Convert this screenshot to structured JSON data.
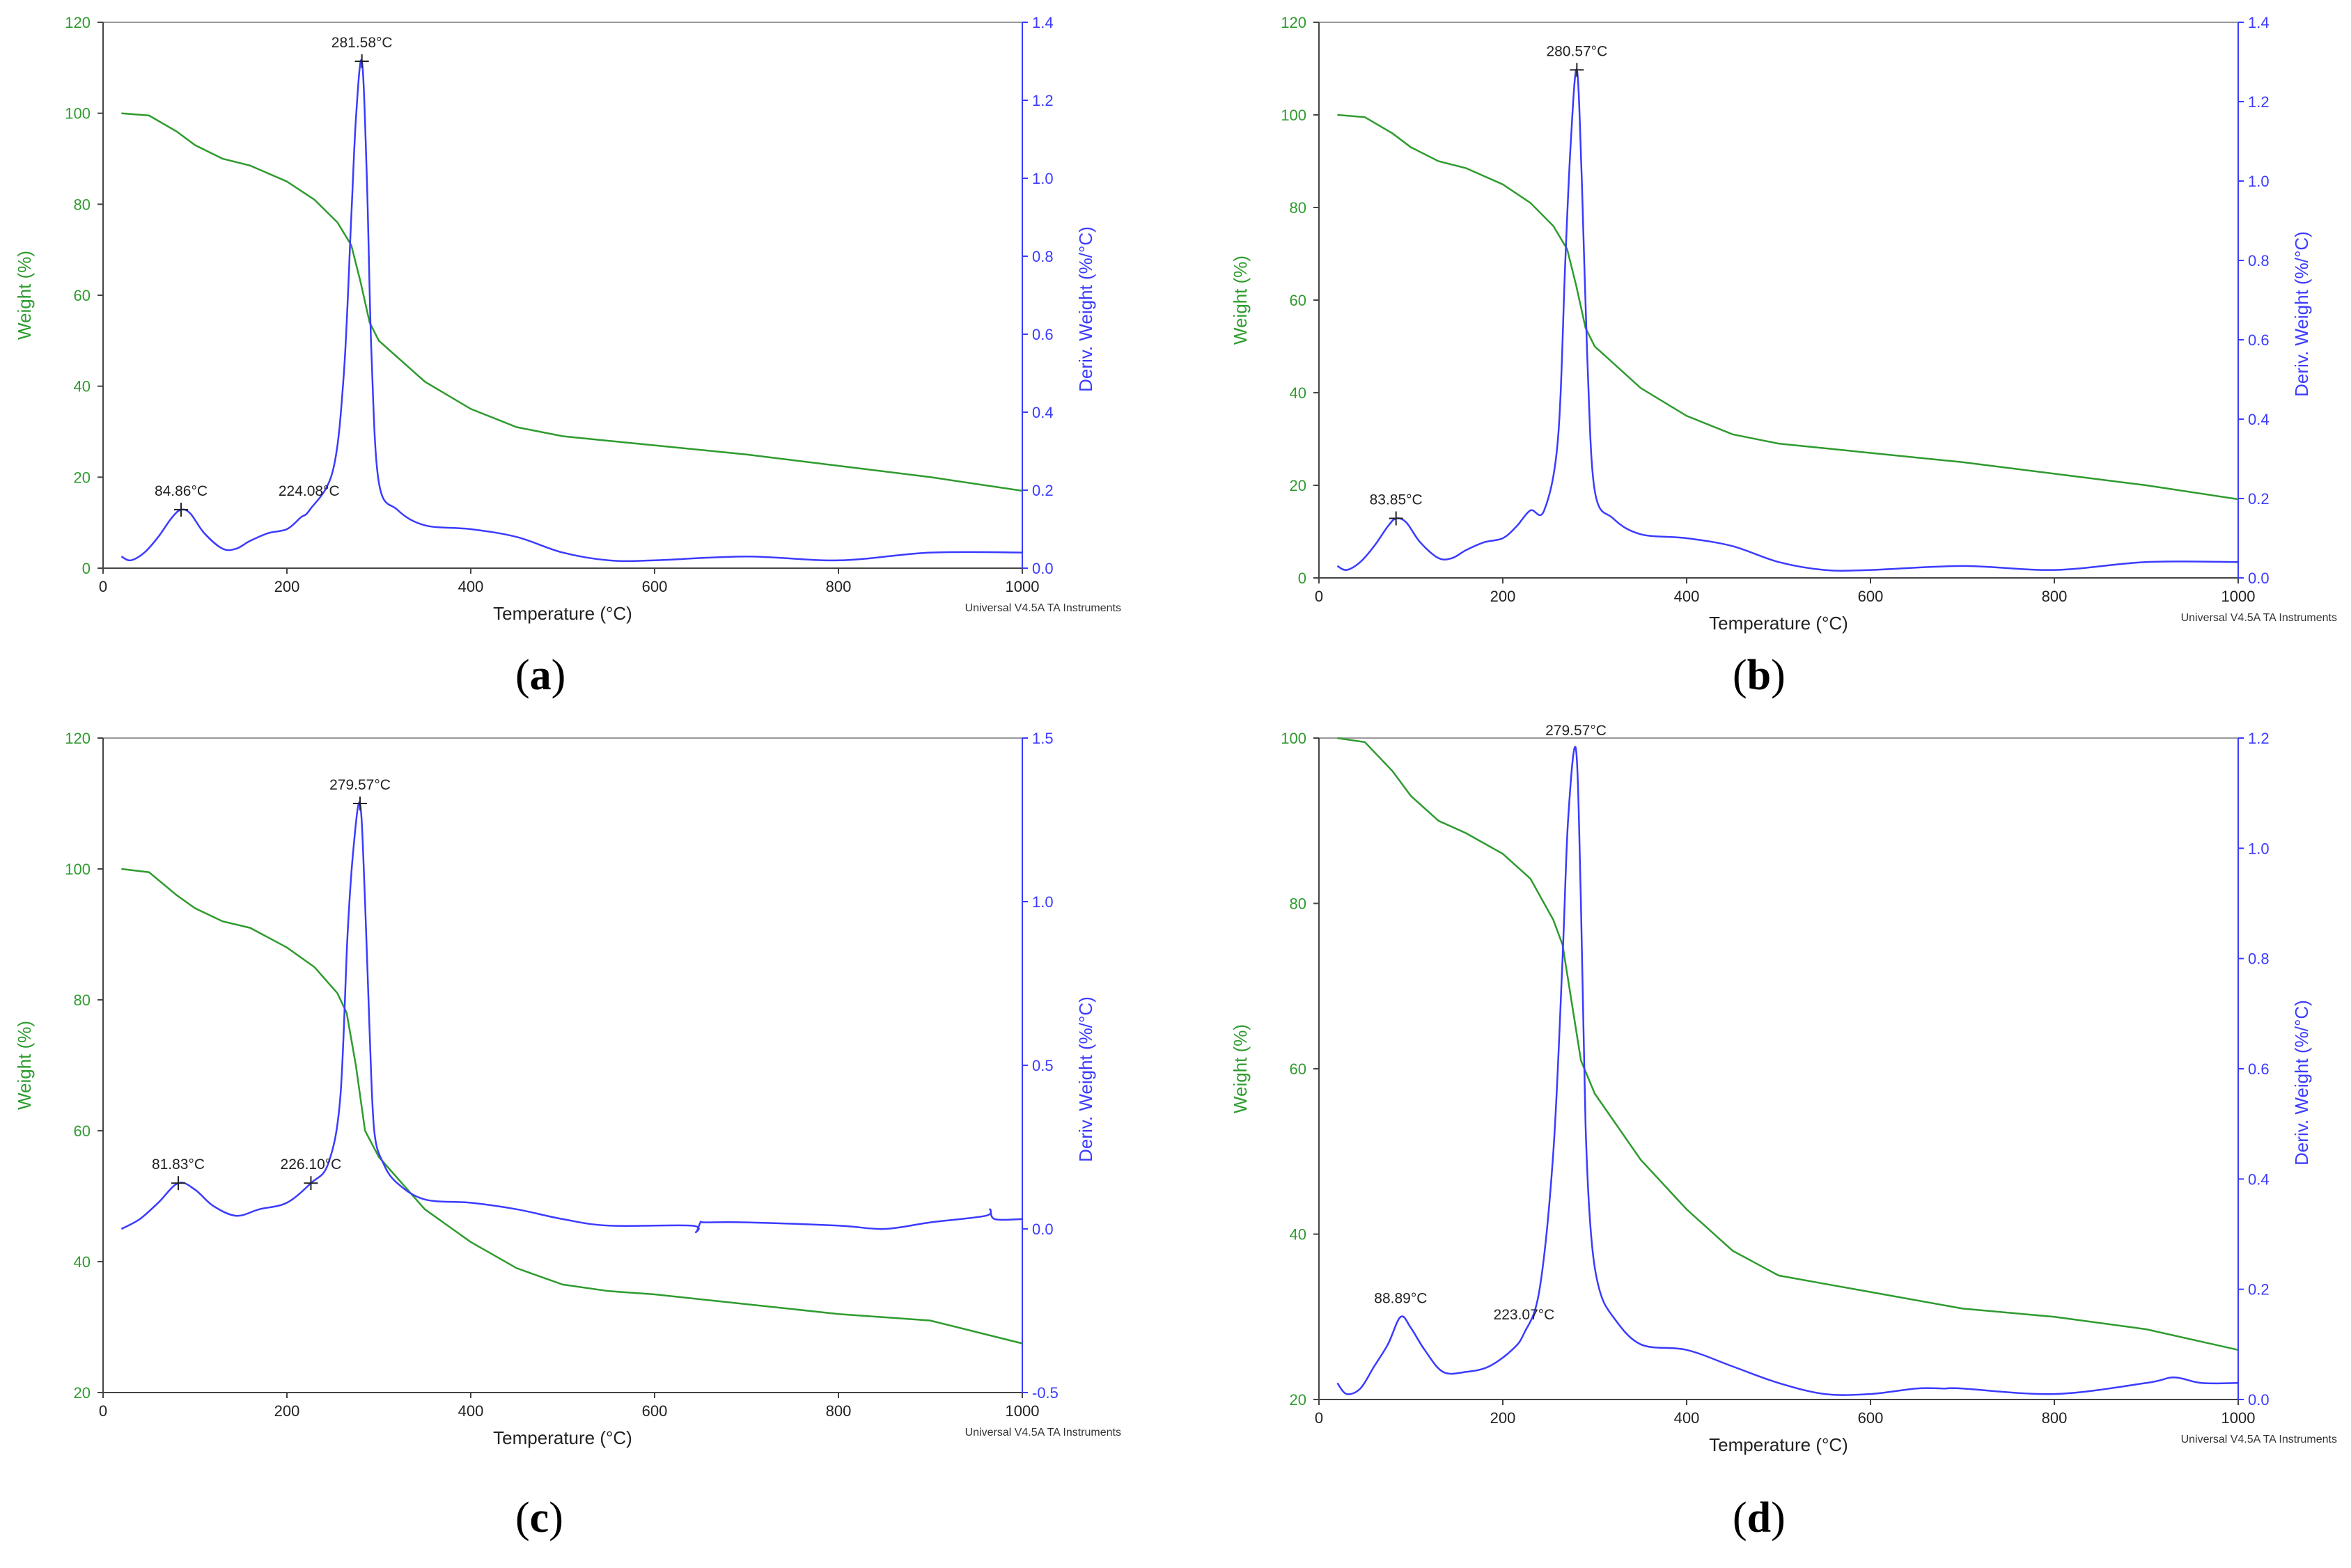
{
  "colors": {
    "weight": "#2e9b2e",
    "deriv": "#3b3bff",
    "axis": "#444444",
    "frame": "#9a9a9a"
  },
  "chart_data": [
    {
      "id": "a",
      "type": "line",
      "caption_letter": "a",
      "xlabel": "Temperature (°C)",
      "ylabel": "Weight (%)",
      "y2label": "Deriv. Weight (%/°C)",
      "watermark": "Universal V4.5A TA Instruments",
      "xlim": [
        0,
        1000
      ],
      "xticks": [
        "0",
        "200",
        "400",
        "600",
        "800",
        "1000"
      ],
      "ylim": [
        0,
        120
      ],
      "yticks": [
        "0",
        "20",
        "40",
        "60",
        "80",
        "100",
        "120"
      ],
      "y2lim": [
        0,
        1.4
      ],
      "y2ticks": [
        "0.0",
        "0.2",
        "0.4",
        "0.6",
        "0.8",
        "1.0",
        "1.2",
        "1.4"
      ],
      "weight_x": [
        20,
        50,
        80,
        100,
        130,
        160,
        200,
        230,
        255,
        270,
        280,
        290,
        300,
        350,
        400,
        450,
        500,
        550,
        600,
        700,
        800,
        900,
        1000
      ],
      "weight_y": [
        100,
        99.5,
        96,
        93,
        90,
        88.5,
        85,
        81,
        76,
        71,
        63,
        54,
        50,
        41,
        35,
        31,
        29,
        28,
        27,
        25,
        22.5,
        20,
        17
      ],
      "deriv_x": [
        20,
        30,
        45,
        60,
        75,
        85,
        95,
        110,
        130,
        145,
        160,
        180,
        200,
        215,
        225,
        250,
        262,
        270,
        275,
        281.58,
        287,
        292,
        300,
        320,
        350,
        400,
        450,
        500,
        550,
        600,
        700,
        800,
        900,
        1000
      ],
      "deriv_y": [
        0.03,
        0.02,
        0.04,
        0.08,
        0.13,
        0.15,
        0.14,
        0.09,
        0.05,
        0.05,
        0.07,
        0.09,
        0.1,
        0.13,
        0.15,
        0.25,
        0.5,
        0.9,
        1.15,
        1.3,
        1.0,
        0.55,
        0.22,
        0.15,
        0.11,
        0.1,
        0.08,
        0.04,
        0.02,
        0.02,
        0.03,
        0.02,
        0.04,
        0.04
      ],
      "annotations": [
        {
          "label": "281.58°C",
          "x": 281.58,
          "y2": 1.3,
          "marker": true
        },
        {
          "label": "84.86°C",
          "x": 84.86,
          "y2": 0.15,
          "marker": true
        },
        {
          "label": "224.08°C",
          "x": 224.08,
          "y2": 0.15,
          "marker": false
        }
      ]
    },
    {
      "id": "b",
      "type": "line",
      "caption_letter": "b",
      "xlabel": "Temperature (°C)",
      "ylabel": "Weight (%)",
      "y2label": "Deriv. Weight (%/°C)",
      "watermark": "Universal V4.5A TA Instruments",
      "xlim": [
        0,
        1000
      ],
      "xticks": [
        "0",
        "200",
        "400",
        "600",
        "800",
        "1000"
      ],
      "ylim": [
        0,
        120
      ],
      "yticks": [
        "0",
        "20",
        "40",
        "60",
        "80",
        "100",
        "120"
      ],
      "y2lim": [
        0,
        1.4
      ],
      "y2ticks": [
        "0.0",
        "0.2",
        "0.4",
        "0.6",
        "0.8",
        "1.0",
        "1.2",
        "1.4"
      ],
      "weight_x": [
        20,
        50,
        80,
        100,
        130,
        160,
        200,
        230,
        255,
        270,
        280,
        290,
        300,
        350,
        400,
        450,
        500,
        550,
        600,
        700,
        800,
        900,
        1000
      ],
      "weight_y": [
        100,
        99.5,
        96,
        93,
        90,
        88.5,
        85,
        81,
        76,
        71,
        63,
        54,
        50,
        41,
        35,
        31,
        29,
        28,
        27,
        25,
        22.5,
        20,
        17
      ],
      "deriv_x": [
        20,
        30,
        45,
        60,
        75,
        84,
        95,
        110,
        130,
        145,
        160,
        180,
        200,
        215,
        230,
        245,
        260,
        268,
        274,
        280.57,
        286,
        292,
        300,
        320,
        350,
        400,
        450,
        500,
        550,
        600,
        700,
        800,
        900,
        1000
      ],
      "deriv_y": [
        0.03,
        0.02,
        0.04,
        0.08,
        0.13,
        0.15,
        0.14,
        0.09,
        0.05,
        0.05,
        0.07,
        0.09,
        0.1,
        0.13,
        0.17,
        0.17,
        0.35,
        0.8,
        1.1,
        1.28,
        1.0,
        0.55,
        0.22,
        0.15,
        0.11,
        0.1,
        0.08,
        0.04,
        0.02,
        0.02,
        0.03,
        0.02,
        0.04,
        0.04
      ],
      "annotations": [
        {
          "label": "280.57°C",
          "x": 280.57,
          "y2": 1.28,
          "marker": true
        },
        {
          "label": "83.85°C",
          "x": 83.85,
          "y2": 0.15,
          "marker": true
        }
      ]
    },
    {
      "id": "c",
      "type": "line",
      "caption_letter": "c",
      "xlabel": "Temperature (°C)",
      "ylabel": "Weight (%)",
      "y2label": "Deriv. Weight (%/°C)",
      "watermark": "Universal V4.5A TA Instruments",
      "xlim": [
        0,
        1000
      ],
      "xticks": [
        "0",
        "200",
        "400",
        "600",
        "800",
        "1000"
      ],
      "ylim": [
        20,
        120
      ],
      "yticks": [
        "20",
        "40",
        "60",
        "80",
        "100",
        "120"
      ],
      "y2lim": [
        -0.5,
        1.5
      ],
      "y2ticks": [
        "-0.5",
        "0.0",
        "0.5",
        "1.0",
        "1.5"
      ],
      "weight_x": [
        20,
        50,
        80,
        100,
        130,
        160,
        200,
        230,
        255,
        265,
        275,
        285,
        300,
        350,
        400,
        450,
        500,
        550,
        600,
        700,
        800,
        900,
        1000
      ],
      "weight_y": [
        100,
        99.5,
        96,
        94,
        92,
        91,
        88,
        85,
        81,
        78,
        70,
        60,
        56,
        48,
        43,
        39,
        36.5,
        35.5,
        35,
        33.5,
        32,
        31,
        27.5
      ],
      "deriv_x": [
        20,
        40,
        60,
        81.83,
        100,
        120,
        145,
        170,
        200,
        226.1,
        245,
        258,
        266,
        272,
        279.57,
        285,
        290,
        295,
        305,
        320,
        350,
        400,
        450,
        500,
        550,
        640,
        645,
        650,
        655,
        700,
        800,
        850,
        900,
        960,
        965,
        970,
        1000
      ],
      "deriv_y": [
        0.0,
        0.03,
        0.08,
        0.14,
        0.12,
        0.07,
        0.04,
        0.06,
        0.08,
        0.14,
        0.2,
        0.4,
        0.9,
        1.15,
        1.3,
        1.0,
        0.6,
        0.3,
        0.2,
        0.14,
        0.09,
        0.08,
        0.06,
        0.03,
        0.01,
        0.01,
        -0.01,
        0.02,
        0.02,
        0.02,
        0.01,
        0.0,
        0.02,
        0.04,
        0.06,
        0.03,
        0.03
      ],
      "annotations": [
        {
          "label": "279.57°C",
          "x": 279.57,
          "y2": 1.3,
          "marker": true
        },
        {
          "label": "81.83°C",
          "x": 81.83,
          "y2": 0.14,
          "marker": true
        },
        {
          "label": "226.10°C",
          "x": 226.1,
          "y2": 0.14,
          "marker": true
        }
      ]
    },
    {
      "id": "d",
      "type": "line",
      "caption_letter": "d",
      "xlabel": "Temperature (°C)",
      "ylabel": "Weight (%)",
      "y2label": "Deriv. Weight (%/°C)",
      "watermark": "Universal V4.5A TA Instruments",
      "xlim": [
        0,
        1000
      ],
      "xticks": [
        "0",
        "200",
        "400",
        "600",
        "800",
        "1000"
      ],
      "ylim": [
        20,
        100
      ],
      "yticks": [
        "20",
        "40",
        "60",
        "80",
        "100"
      ],
      "y2lim": [
        0,
        1.2
      ],
      "y2ticks": [
        "0.0",
        "0.2",
        "0.4",
        "0.6",
        "0.8",
        "1.0",
        "1.2"
      ],
      "weight_x": [
        20,
        50,
        80,
        100,
        130,
        160,
        200,
        230,
        255,
        265,
        275,
        285,
        300,
        350,
        400,
        450,
        500,
        550,
        600,
        700,
        800,
        900,
        1000
      ],
      "weight_y": [
        100,
        99.5,
        96,
        93,
        90,
        88.5,
        86,
        83,
        78,
        75,
        68,
        61,
        57,
        49,
        43,
        38,
        35,
        34,
        33,
        31,
        30,
        28.5,
        26
      ],
      "deriv_x": [
        20,
        30,
        45,
        60,
        75,
        88.89,
        100,
        115,
        135,
        160,
        185,
        210,
        223.07,
        240,
        255,
        265,
        271,
        279.57,
        285,
        290,
        296,
        305,
        320,
        350,
        400,
        450,
        500,
        550,
        600,
        650,
        680,
        700,
        800,
        900,
        930,
        960,
        1000
      ],
      "deriv_y": [
        0.03,
        0.01,
        0.02,
        0.06,
        0.1,
        0.15,
        0.13,
        0.09,
        0.05,
        0.05,
        0.06,
        0.09,
        0.12,
        0.2,
        0.45,
        0.8,
        1.05,
        1.18,
        0.9,
        0.5,
        0.3,
        0.2,
        0.15,
        0.1,
        0.09,
        0.06,
        0.03,
        0.01,
        0.01,
        0.02,
        0.02,
        0.02,
        0.01,
        0.03,
        0.04,
        0.03,
        0.03
      ],
      "annotations": [
        {
          "label": "279.57°C",
          "x": 279.57,
          "y2": 1.18,
          "marker": false
        },
        {
          "label": "88.89°C",
          "x": 88.89,
          "y2": 0.15,
          "marker": false
        },
        {
          "label": "223.07°C",
          "x": 223.07,
          "y2": 0.12,
          "marker": false
        }
      ]
    }
  ]
}
